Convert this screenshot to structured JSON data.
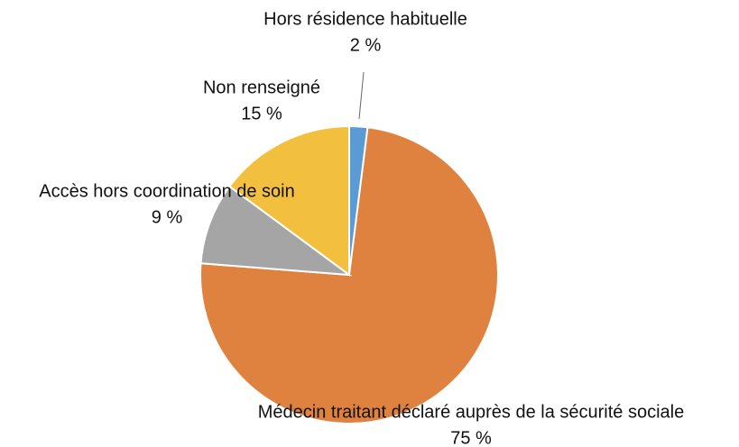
{
  "chart_data": {
    "type": "pie",
    "categories": [
      "Hors résidence habituelle",
      "Médecin traitant déclaré auprès de la sécurité sociale",
      "Accès hors coordination de soin",
      "Non renseigné"
    ],
    "values": [
      2,
      75,
      9,
      15
    ],
    "value_labels": [
      "2 %",
      "75 %",
      "9 %",
      "15 %"
    ],
    "colors": [
      "#5b9bd5",
      "#e0823f",
      "#a5a5a5",
      "#f2c03e"
    ]
  }
}
